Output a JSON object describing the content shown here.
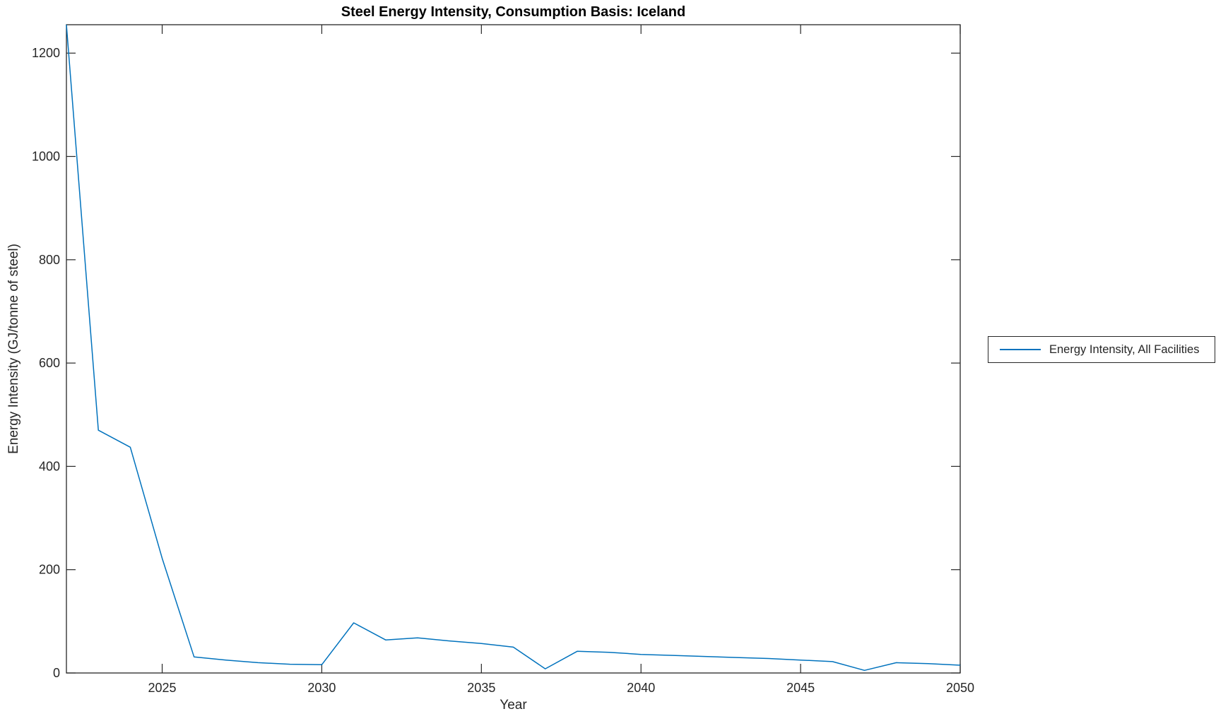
{
  "figure": {
    "title": "Steel Energy Intensity, Consumption Basis: Iceland",
    "xlabel": "Year",
    "ylabel": "Energy Intensity (GJ/tonne of steel)"
  },
  "legend": {
    "position": "right-outside",
    "entries": [
      {
        "label": "Energy Intensity, All Facilities",
        "color": "#0072BD"
      }
    ]
  },
  "colors": {
    "line": "#0072BD",
    "axis": "#262626",
    "title_text": "#000000",
    "background": "#ffffff"
  },
  "chart_data": {
    "type": "line",
    "title": "Steel Energy Intensity, Consumption Basis: Iceland",
    "xlabel": "Year",
    "ylabel": "Energy Intensity (GJ/tonne of steel)",
    "xlim": [
      2022,
      2050
    ],
    "ylim": [
      0,
      1255
    ],
    "xticks": [
      2025,
      2030,
      2035,
      2040,
      2045,
      2050
    ],
    "yticks": [
      0,
      200,
      400,
      600,
      800,
      1000,
      1200
    ],
    "grid": false,
    "legend_position": "right-outside",
    "series": [
      {
        "name": "Energy Intensity, All Facilities",
        "color": "#0072BD",
        "x": [
          2022,
          2023,
          2024,
          2025,
          2026,
          2027,
          2028,
          2029,
          2030,
          2031,
          2032,
          2033,
          2034,
          2035,
          2036,
          2037,
          2038,
          2039,
          2040,
          2041,
          2042,
          2043,
          2044,
          2045,
          2046,
          2047,
          2048,
          2049,
          2050
        ],
        "values": [
          1255,
          470,
          437,
          222,
          31,
          25,
          20,
          17,
          16,
          97,
          64,
          68,
          62,
          57,
          50,
          8,
          42,
          40,
          36,
          34,
          32,
          30,
          28,
          25,
          22,
          5,
          20,
          18,
          15
        ]
      }
    ]
  }
}
